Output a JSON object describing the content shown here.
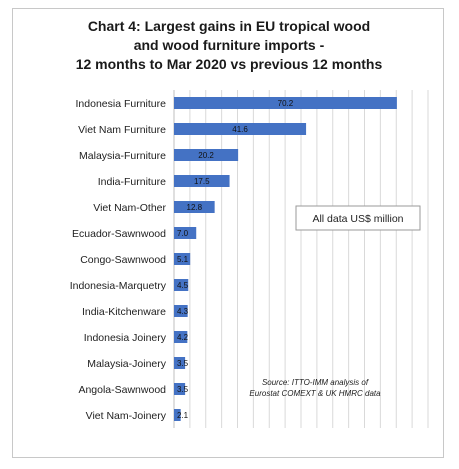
{
  "title_lines": [
    "Chart 4: Largest gains in EU tropical wood",
    "and wood furniture imports -",
    "12 months to Mar 2020 vs previous 12 months"
  ],
  "annotation_box": "All data US$ million",
  "source_lines": [
    "Source: ITTO-IMM analysis of",
    "Eurostat COMEXT & UK HMRC data"
  ],
  "colors": {
    "bar": "#4472c4",
    "grid": "#d9d9d9"
  },
  "chart_data": {
    "type": "bar",
    "orientation": "horizontal",
    "title": "Chart 4: Largest gains in EU tropical wood and wood furniture imports - 12 months to Mar 2020 vs previous 12 months",
    "categories": [
      "Indonesia Furniture",
      "Viet Nam Furniture",
      "Malaysia-Furniture",
      "India-Furniture",
      "Viet Nam-Other",
      "Ecuador-Sawnwood",
      "Congo-Sawnwood",
      "Indonesia-Marquetry",
      "India-Kitchenware",
      "Indonesia Joinery",
      "Malaysia-Joinery",
      "Angola-Sawnwood",
      "Viet Nam-Joinery"
    ],
    "values": [
      70.2,
      41.6,
      20.2,
      17.5,
      12.8,
      7.0,
      5.1,
      4.5,
      4.3,
      4.2,
      3.5,
      3.5,
      2.1
    ],
    "value_labels": [
      "70.2",
      "41.6",
      "20.2",
      "17.5",
      "12.8",
      "7.0",
      "5.1",
      "4.5",
      "4.3",
      "4.2",
      "3.5",
      "3.5",
      "2.1"
    ],
    "xlim": [
      0,
      80
    ],
    "grid": true,
    "legend": "none"
  }
}
